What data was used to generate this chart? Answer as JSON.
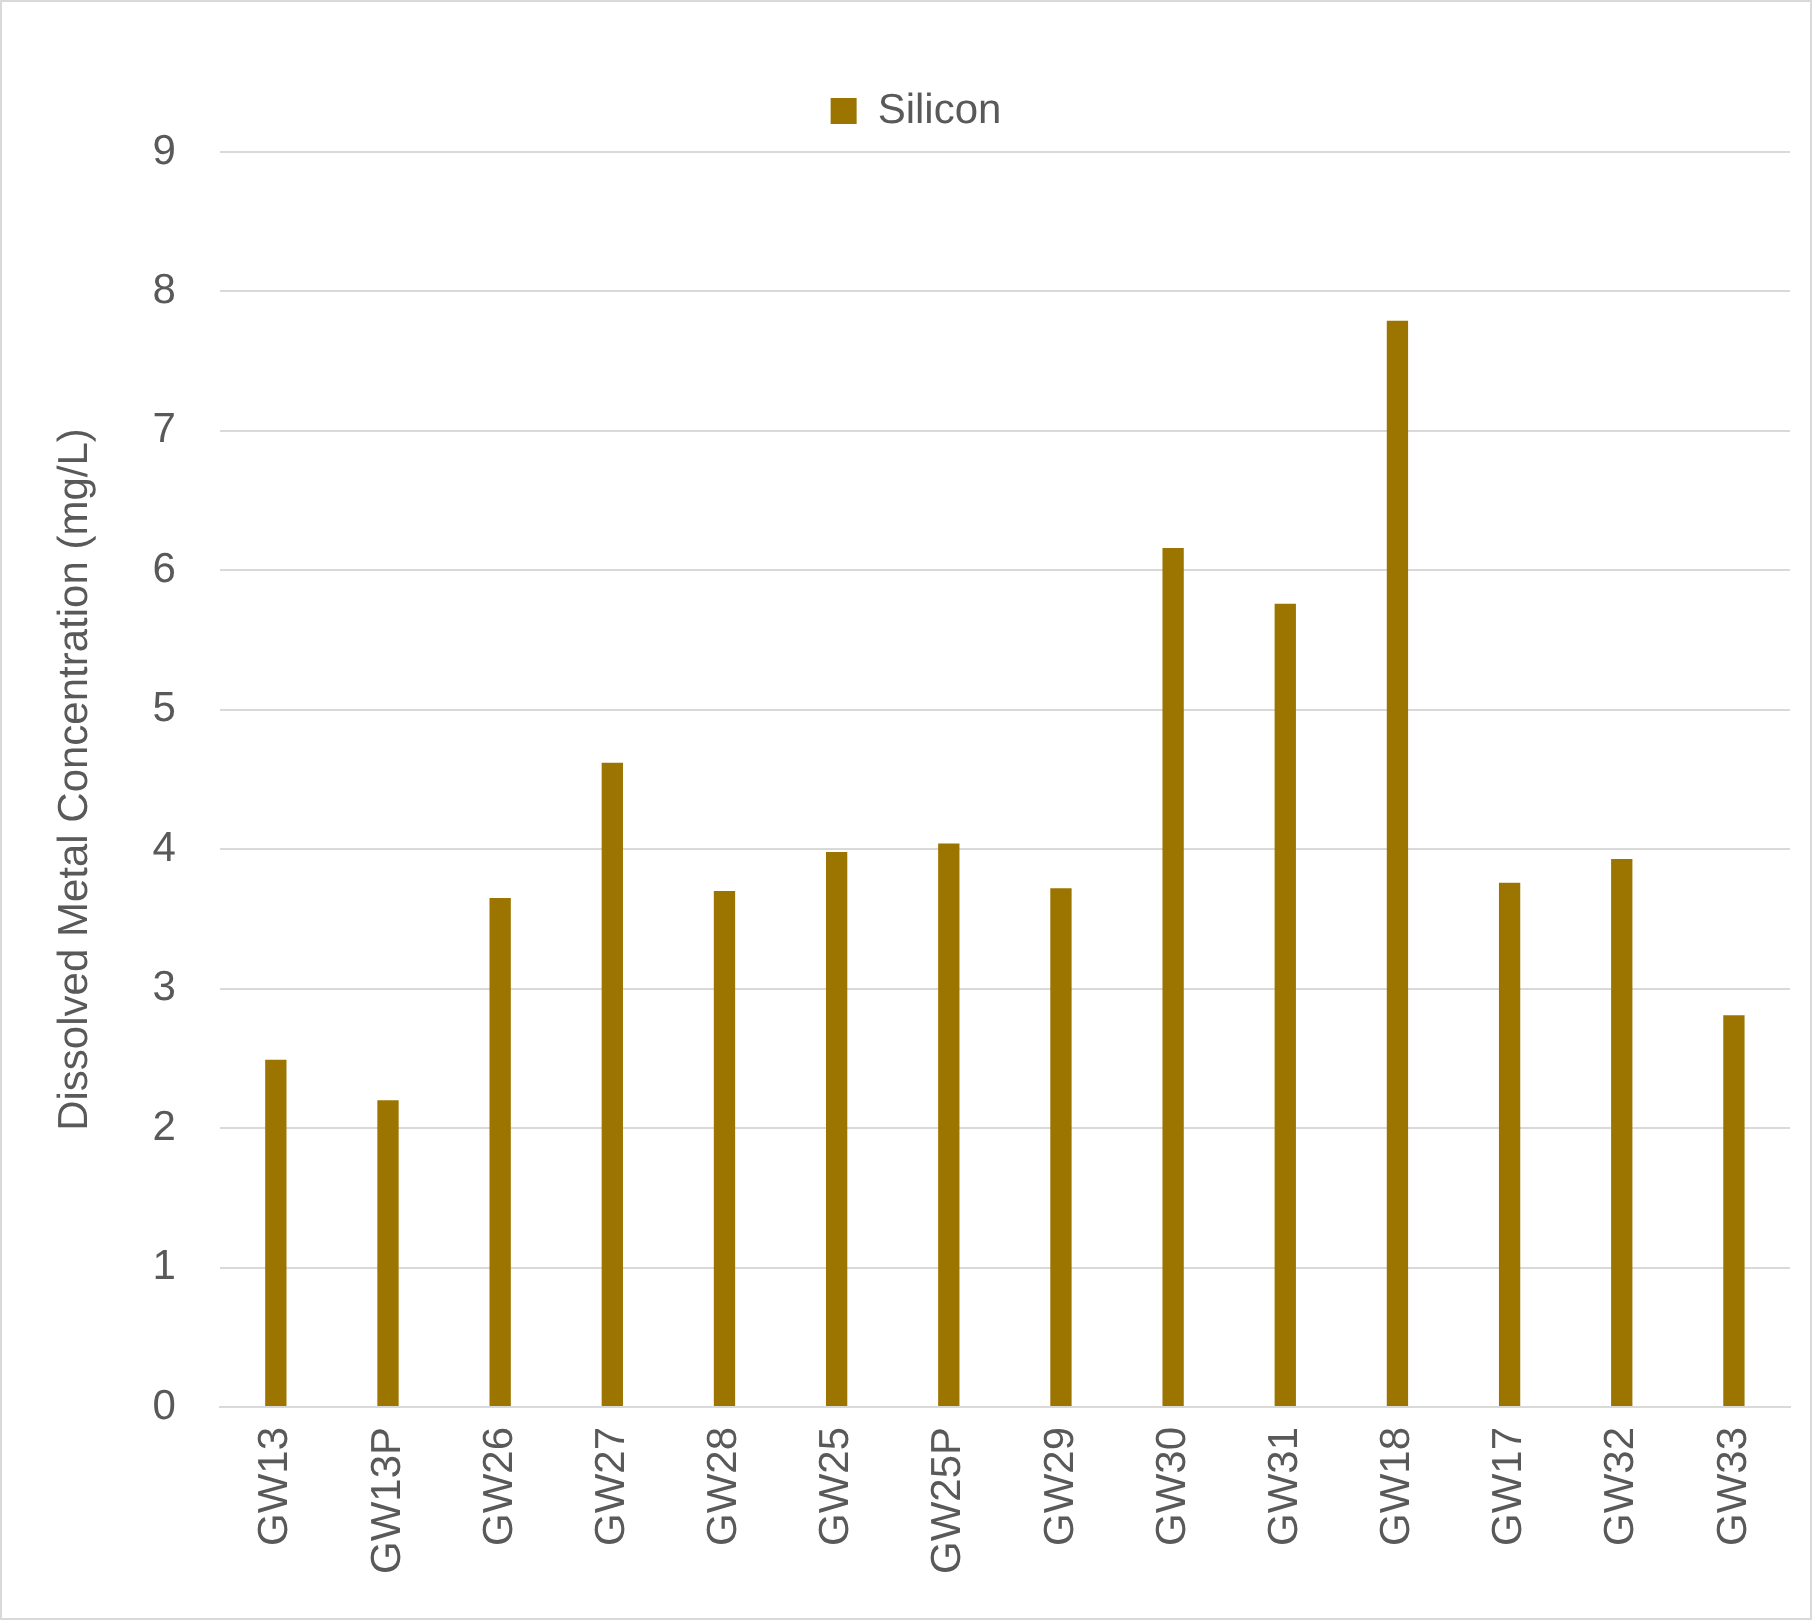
{
  "chart_data": {
    "type": "bar",
    "ylabel": "Dissolved Metal Concentration (mg/L)",
    "categories": [
      "GW13",
      "GW13P",
      "GW26",
      "GW27",
      "GW28",
      "GW25",
      "GW25P",
      "GW29",
      "GW30",
      "GW31",
      "GW18",
      "GW17",
      "GW32",
      "GW33"
    ],
    "series": [
      {
        "name": "Silicon",
        "color": "#9c7500",
        "values": [
          2.49,
          2.2,
          3.65,
          4.62,
          3.7,
          3.98,
          4.04,
          3.72,
          6.16,
          5.76,
          7.79,
          3.76,
          3.93,
          2.81
        ]
      }
    ],
    "ylim": [
      0,
      9
    ],
    "yticks": [
      0,
      1,
      2,
      3,
      4,
      5,
      6,
      7,
      8,
      9
    ],
    "grid": "y",
    "legend": "top"
  }
}
